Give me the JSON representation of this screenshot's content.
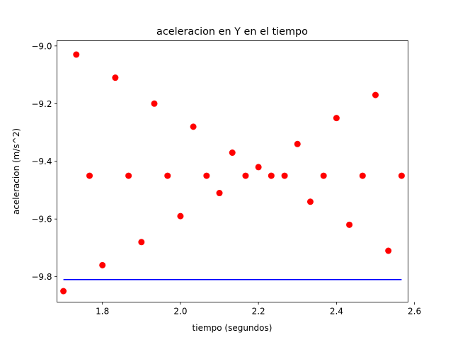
{
  "chart_data": {
    "type": "scatter",
    "title": "aceleracion en Y en el tiempo",
    "xlabel": "tiempo (segundos)",
    "ylabel": "aceleracion (m/s^2)",
    "xlim": [
      1.6835,
      2.5835
    ],
    "ylim": [
      -9.888,
      -8.982
    ],
    "xticks": [
      1.8,
      2.0,
      2.2,
      2.4,
      2.6
    ],
    "xtick_labels": [
      "1.8",
      "2.0",
      "2.2",
      "2.4",
      "2.6"
    ],
    "yticks": [
      -9.8,
      -9.6,
      -9.4,
      -9.2,
      -9.0
    ],
    "ytick_labels": [
      "−9.8",
      "−9.6",
      "−9.4",
      "−9.2",
      "−9.0"
    ],
    "grid": false,
    "series": [
      {
        "type": "scatter",
        "color": "#ff0000",
        "x": [
          1.7,
          1.733,
          1.767,
          1.8,
          1.833,
          1.867,
          1.9,
          1.933,
          1.967,
          2.0,
          2.033,
          2.067,
          2.1,
          2.133,
          2.167,
          2.2,
          2.233,
          2.267,
          2.3,
          2.333,
          2.367,
          2.4,
          2.433,
          2.467,
          2.5,
          2.533,
          2.567
        ],
        "y": [
          -9.85,
          -9.03,
          -9.45,
          -9.76,
          -9.11,
          -9.45,
          -9.68,
          -9.2,
          -9.45,
          -9.59,
          -9.28,
          -9.45,
          -9.51,
          -9.37,
          -9.45,
          -9.42,
          -9.45,
          -9.45,
          -9.34,
          -9.54,
          -9.45,
          -9.25,
          -9.62,
          -9.45,
          -9.17,
          -9.71,
          -9.45
        ]
      },
      {
        "type": "line",
        "color": "#0000ff",
        "x": [
          1.7,
          2.567
        ],
        "y": [
          -9.81,
          -9.81
        ]
      }
    ]
  }
}
